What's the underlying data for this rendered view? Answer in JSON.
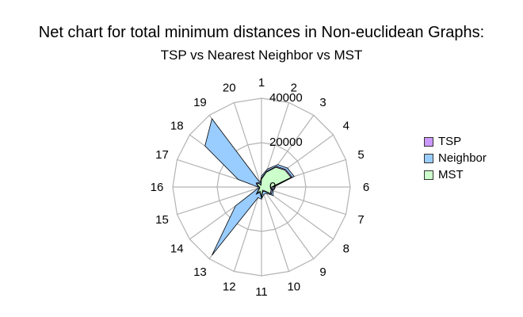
{
  "chart_data": {
    "type": "radar",
    "title": "Net chart for total minimum distances in Non-euclidean Graphs:",
    "subtitle": "TSP vs Nearest Neighbor vs MST",
    "categories": [
      "1",
      "2",
      "3",
      "4",
      "5",
      "6",
      "7",
      "8",
      "9",
      "10",
      "11",
      "12",
      "13",
      "14",
      "15",
      "16",
      "17",
      "18",
      "19",
      "20"
    ],
    "rlim": [
      0,
      40000
    ],
    "tick_labels": [
      "0",
      "20000",
      "40000"
    ],
    "grid": true,
    "legend_position": "right",
    "series": [
      {
        "name": "TSP",
        "color": "#cc99ff",
        "values": [
          4000,
          7500,
          11500,
          13500,
          14500,
          5000,
          5000,
          5500,
          2500,
          2000,
          5000,
          2500,
          4000,
          1500,
          1000,
          1000,
          2000,
          3000,
          2500,
          1000
        ]
      },
      {
        "name": "Neighbor",
        "color": "#99ccff",
        "values": [
          5000,
          8500,
          12500,
          14500,
          15500,
          5500,
          5500,
          6500,
          3500,
          3500,
          5500,
          5000,
          38000,
          14500,
          1500,
          1500,
          11000,
          31500,
          38000,
          2000
        ]
      },
      {
        "name": "MST",
        "color": "#ccffcc",
        "values": [
          3500,
          7000,
          11000,
          13000,
          14000,
          4500,
          4500,
          5000,
          2000,
          1500,
          4500,
          2000,
          3500,
          1000,
          800,
          800,
          1500,
          2500,
          2000,
          800
        ]
      }
    ]
  }
}
